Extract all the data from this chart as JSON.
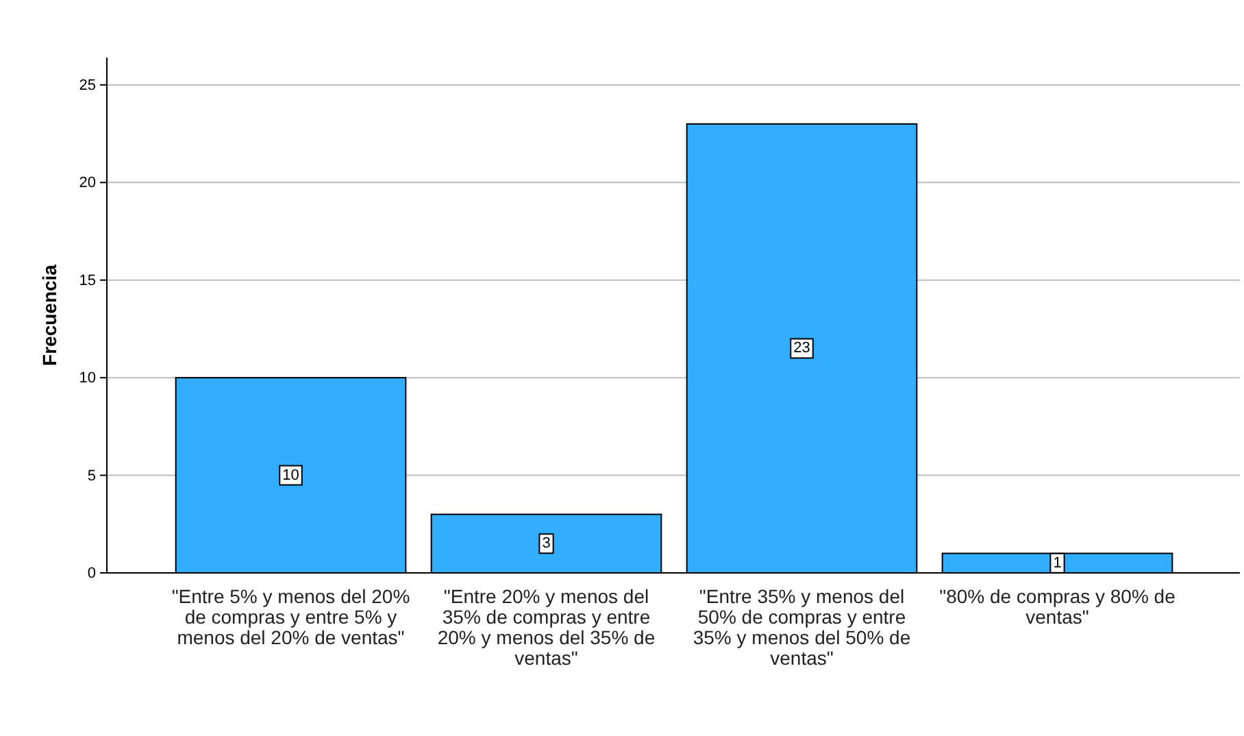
{
  "chart_data": {
    "type": "bar",
    "ylabel": "Frecuencia",
    "categories": [
      "\"Entre 5% y menos del 20% de compras y entre 5% y menos del 20% de ventas\"",
      "\"Entre 20% y menos del 35% de compras y entre 20% y menos del 35% de ventas\"",
      "\"Entre 35% y menos del 50% de compras y entre 35% y menos del 50% de ventas\"",
      "\"80% de compras y 80% de ventas\""
    ],
    "values": [
      10,
      3,
      23,
      1
    ],
    "color": "#33adff",
    "ylim": [
      0,
      26.4
    ],
    "yticks": [
      0,
      5,
      10,
      15,
      20,
      25
    ],
    "grid": "y",
    "data_labels": true
  }
}
